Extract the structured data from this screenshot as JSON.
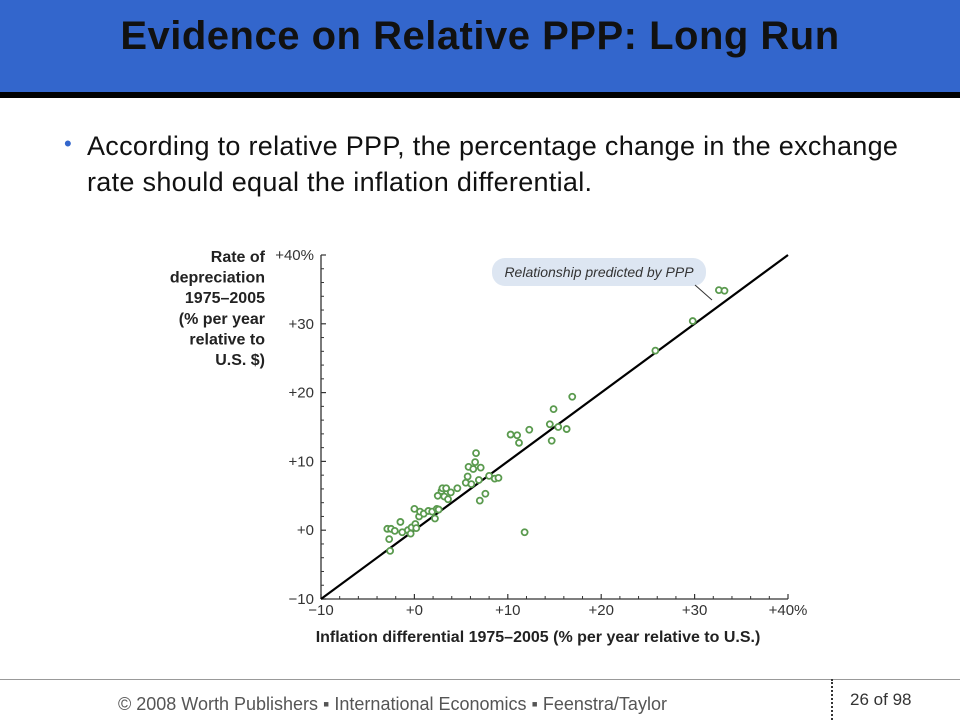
{
  "slide": {
    "title": "Evidence on Relative PPP: Long Run",
    "bullet": "According to relative PPP, the percentage change in the exchange rate should equal the inflation differential."
  },
  "footer": {
    "text": "© 2008 Worth Publishers ▪ International Economics ▪ Feenstra/Taylor",
    "page": "26",
    "page_sep": "of",
    "page_total": "98"
  },
  "chart_data": {
    "type": "scatter",
    "xlabel": "Inflation differential 1975–2005 (% per year relative to U.S.)",
    "ylabel_lines": [
      "Rate of",
      "depreciation",
      "1975–2005",
      "(% per year",
      "relative to",
      "U.S. $)"
    ],
    "xlim": [
      -10,
      40
    ],
    "ylim": [
      -10,
      40
    ],
    "x_ticks": [
      -10,
      0,
      10,
      20,
      30,
      40
    ],
    "x_tick_labels": [
      "−10",
      "+0",
      "+10",
      "+20",
      "+30",
      "+40%"
    ],
    "y_ticks": [
      -10,
      0,
      10,
      20,
      30,
      40
    ],
    "y_tick_labels": [
      "−10",
      "+0",
      "+10",
      "+20",
      "+30",
      "+40%"
    ],
    "annotation": "Relationship predicted by PPP",
    "line": {
      "x": [
        -10,
        40
      ],
      "y": [
        -10,
        40
      ]
    },
    "point_color": "#5a9a4e",
    "line_color": "#000000",
    "points": [
      [
        -2.9,
        0.2
      ],
      [
        -2.7,
        -1.3
      ],
      [
        -2.5,
        0.2
      ],
      [
        -2.6,
        -3.0
      ],
      [
        -2.1,
        -0.1
      ],
      [
        -1.5,
        1.2
      ],
      [
        -1.3,
        -0.3
      ],
      [
        -0.7,
        0.0
      ],
      [
        -0.4,
        -0.5
      ],
      [
        -0.3,
        0.4
      ],
      [
        0.1,
        0.9
      ],
      [
        0.2,
        0.3
      ],
      [
        0.0,
        3.1
      ],
      [
        0.5,
        2.0
      ],
      [
        0.6,
        2.7
      ],
      [
        1.0,
        2.4
      ],
      [
        1.5,
        2.8
      ],
      [
        1.9,
        2.7
      ],
      [
        2.2,
        1.7
      ],
      [
        2.4,
        3.1
      ],
      [
        2.5,
        5.0
      ],
      [
        2.6,
        3.0
      ],
      [
        2.9,
        5.7
      ],
      [
        3.2,
        4.9
      ],
      [
        3.0,
        6.1
      ],
      [
        3.4,
        6.1
      ],
      [
        3.6,
        4.5
      ],
      [
        3.9,
        5.5
      ],
      [
        4.6,
        6.1
      ],
      [
        5.5,
        6.9
      ],
      [
        5.7,
        7.8
      ],
      [
        5.8,
        9.2
      ],
      [
        6.1,
        6.7
      ],
      [
        6.3,
        8.9
      ],
      [
        6.5,
        9.9
      ],
      [
        6.6,
        11.2
      ],
      [
        6.9,
        7.3
      ],
      [
        7.1,
        9.1
      ],
      [
        7.0,
        4.3
      ],
      [
        7.6,
        5.3
      ],
      [
        8.0,
        7.9
      ],
      [
        8.6,
        7.5
      ],
      [
        9.0,
        7.6
      ],
      [
        10.3,
        13.9
      ],
      [
        11.0,
        13.8
      ],
      [
        11.2,
        12.7
      ],
      [
        12.3,
        14.6
      ],
      [
        14.5,
        15.4
      ],
      [
        14.7,
        13.0
      ],
      [
        14.9,
        17.6
      ],
      [
        15.4,
        15.0
      ],
      [
        16.3,
        14.7
      ],
      [
        16.9,
        19.4
      ],
      [
        11.8,
        -0.3
      ],
      [
        25.8,
        26.1
      ],
      [
        29.8,
        30.4
      ],
      [
        32.6,
        34.9
      ],
      [
        33.2,
        34.8
      ]
    ]
  }
}
